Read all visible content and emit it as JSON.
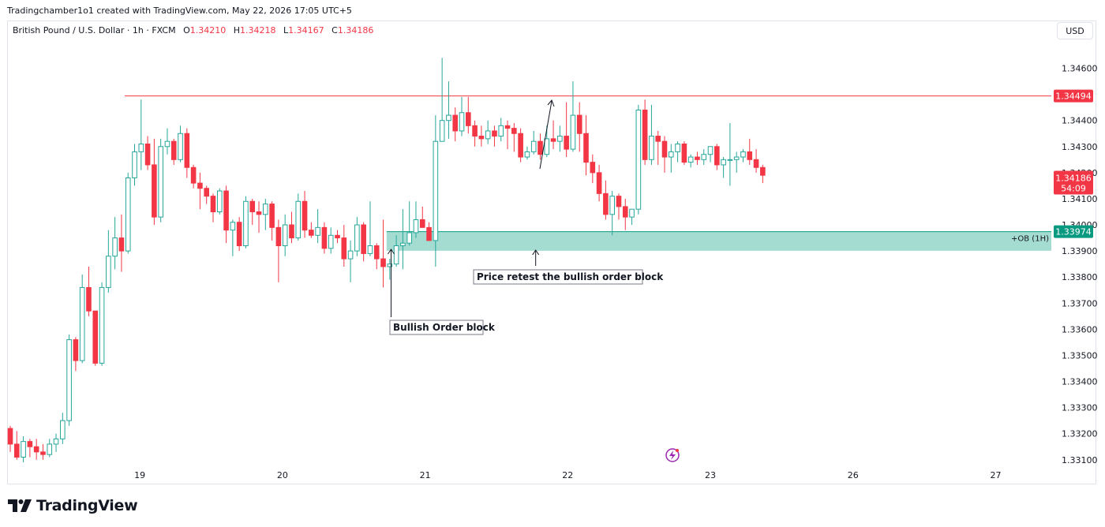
{
  "header": {
    "credit": "Tradingchamber1o1 created with TradingView.com, May 22, 2026 17:05 UTC+5"
  },
  "legend": {
    "symbol": "British Pound / U.S. Dollar · 1h · FXCM",
    "o_label": "O",
    "o_value": "1.34210",
    "h_label": "H",
    "h_value": "1.34218",
    "l_label": "L",
    "l_value": "1.34167",
    "c_label": "C",
    "c_value": "1.34186"
  },
  "currency_button": "USD",
  "brand": {
    "name": "TradingView",
    "icon": "tradingview-logo-icon"
  },
  "colors": {
    "up": "#26a69a",
    "down": "#f23645",
    "ob_zone": "#a5dcd2",
    "ob_line": "#089981",
    "resistance": "#f23645",
    "grid": "#f0f3fa"
  },
  "chart_data": {
    "type": "candlestick",
    "title": "British Pound / U.S. Dollar",
    "interval": "1h",
    "ylim": [
      1.3306,
      1.3478
    ],
    "y_ticks": [
      "1.34600",
      "1.34400",
      "1.34300",
      "1.34200",
      "1.34100",
      "1.34000",
      "1.33900",
      "1.33800",
      "1.33700",
      "1.33600",
      "1.33500",
      "1.33400",
      "1.33300",
      "1.33200",
      "1.33100"
    ],
    "x_ticks": [
      {
        "label": "19",
        "index": 19.8
      },
      {
        "label": "20",
        "index": 41.6
      },
      {
        "label": "21",
        "index": 63.4
      },
      {
        "label": "22",
        "index": 85.2
      },
      {
        "label": "23",
        "index": 107.0
      },
      {
        "label": "26",
        "index": 128.8
      },
      {
        "label": "27",
        "index": 150.6
      }
    ],
    "candles": [
      [
        1.3322,
        1.3323,
        1.3313,
        1.3316
      ],
      [
        1.3316,
        1.3321,
        1.331,
        1.3311
      ],
      [
        1.3311,
        1.3319,
        1.3309,
        1.3317
      ],
      [
        1.3317,
        1.3318,
        1.3311,
        1.3315
      ],
      [
        1.3315,
        1.3318,
        1.331,
        1.3313
      ],
      [
        1.3313,
        1.3316,
        1.331,
        1.3312
      ],
      [
        1.3312,
        1.3318,
        1.3311,
        1.3316
      ],
      [
        1.3316,
        1.332,
        1.3313,
        1.3318
      ],
      [
        1.3318,
        1.3328,
        1.3316,
        1.3325
      ],
      [
        1.3325,
        1.3358,
        1.3323,
        1.3356
      ],
      [
        1.3356,
        1.3357,
        1.3344,
        1.3348
      ],
      [
        1.3348,
        1.3381,
        1.3347,
        1.3376
      ],
      [
        1.3376,
        1.3384,
        1.3365,
        1.3367
      ],
      [
        1.3367,
        1.3367,
        1.3346,
        1.3347
      ],
      [
        1.3347,
        1.3378,
        1.3346,
        1.3376
      ],
      [
        1.3376,
        1.3398,
        1.3374,
        1.3388
      ],
      [
        1.3388,
        1.3403,
        1.3383,
        1.3395
      ],
      [
        1.3395,
        1.3404,
        1.3382,
        1.339
      ],
      [
        1.339,
        1.342,
        1.3389,
        1.3418
      ],
      [
        1.3418,
        1.3431,
        1.3415,
        1.3428
      ],
      [
        1.3428,
        1.3448,
        1.3421,
        1.3431
      ],
      [
        1.3431,
        1.3434,
        1.3421,
        1.3423
      ],
      [
        1.3423,
        1.3433,
        1.34,
        1.3403
      ],
      [
        1.3403,
        1.3433,
        1.3401,
        1.343
      ],
      [
        1.343,
        1.3437,
        1.3427,
        1.3432
      ],
      [
        1.3432,
        1.3433,
        1.3423,
        1.3425
      ],
      [
        1.3425,
        1.3438,
        1.3424,
        1.3435
      ],
      [
        1.3435,
        1.3437,
        1.3418,
        1.3422
      ],
      [
        1.3422,
        1.3423,
        1.3414,
        1.3416
      ],
      [
        1.3416,
        1.342,
        1.3406,
        1.3414
      ],
      [
        1.3414,
        1.3415,
        1.3408,
        1.3411
      ],
      [
        1.3411,
        1.3412,
        1.3401,
        1.3405
      ],
      [
        1.3405,
        1.3414,
        1.3404,
        1.3413
      ],
      [
        1.3413,
        1.3415,
        1.3393,
        1.3398
      ],
      [
        1.3398,
        1.3402,
        1.3388,
        1.3401
      ],
      [
        1.3401,
        1.3403,
        1.339,
        1.3392
      ],
      [
        1.3392,
        1.3411,
        1.3391,
        1.3409
      ],
      [
        1.3409,
        1.341,
        1.34,
        1.3405
      ],
      [
        1.3405,
        1.3409,
        1.3397,
        1.3404
      ],
      [
        1.3404,
        1.341,
        1.3398,
        1.3408
      ],
      [
        1.3408,
        1.3409,
        1.3394,
        1.3399
      ],
      [
        1.3399,
        1.3402,
        1.3378,
        1.3392
      ],
      [
        1.3392,
        1.3404,
        1.3388,
        1.34
      ],
      [
        1.34,
        1.3405,
        1.3393,
        1.3395
      ],
      [
        1.3395,
        1.3412,
        1.3394,
        1.3409
      ],
      [
        1.3409,
        1.3413,
        1.3395,
        1.3398
      ],
      [
        1.3398,
        1.3401,
        1.3395,
        1.3396
      ],
      [
        1.3396,
        1.3406,
        1.3393,
        1.3399
      ],
      [
        1.3399,
        1.3401,
        1.3389,
        1.3391
      ],
      [
        1.3391,
        1.3399,
        1.3389,
        1.3396
      ],
      [
        1.3396,
        1.3398,
        1.3393,
        1.3395
      ],
      [
        1.3395,
        1.34,
        1.3384,
        1.3387
      ],
      [
        1.3387,
        1.3394,
        1.3378,
        1.339
      ],
      [
        1.339,
        1.3403,
        1.3388,
        1.34
      ],
      [
        1.34,
        1.3401,
        1.3386,
        1.3389
      ],
      [
        1.3389,
        1.3409,
        1.3388,
        1.3392
      ],
      [
        1.3392,
        1.3393,
        1.3383,
        1.3387
      ],
      [
        1.3387,
        1.3402,
        1.3376,
        1.3384
      ],
      [
        1.3384,
        1.3387,
        1.3379,
        1.3385
      ],
      [
        1.3385,
        1.3396,
        1.3384,
        1.3392
      ],
      [
        1.3392,
        1.3406,
        1.3383,
        1.3393
      ],
      [
        1.3393,
        1.3409,
        1.3392,
        1.3397
      ],
      [
        1.3397,
        1.3409,
        1.3395,
        1.3402
      ],
      [
        1.3402,
        1.3407,
        1.34,
        1.3399
      ],
      [
        1.3399,
        1.3401,
        1.3394,
        1.3394
      ],
      [
        1.3394,
        1.3442,
        1.3384,
        1.3432
      ],
      [
        1.3432,
        1.3464,
        1.3432,
        1.344
      ],
      [
        1.344,
        1.3455,
        1.3433,
        1.3442
      ],
      [
        1.3442,
        1.3445,
        1.3432,
        1.3436
      ],
      [
        1.3436,
        1.3449,
        1.3434,
        1.3443
      ],
      [
        1.3443,
        1.3449,
        1.3435,
        1.3438
      ],
      [
        1.3438,
        1.344,
        1.343,
        1.3434
      ],
      [
        1.3434,
        1.3438,
        1.343,
        1.3433
      ],
      [
        1.3433,
        1.344,
        1.3431,
        1.3436
      ],
      [
        1.3436,
        1.3438,
        1.343,
        1.3434
      ],
      [
        1.3434,
        1.3441,
        1.3432,
        1.3438
      ],
      [
        1.3438,
        1.344,
        1.3429,
        1.3437
      ],
      [
        1.3437,
        1.3439,
        1.3428,
        1.3435
      ],
      [
        1.3435,
        1.3437,
        1.3424,
        1.3426
      ],
      [
        1.3426,
        1.343,
        1.3425,
        1.3428
      ],
      [
        1.3428,
        1.3436,
        1.3427,
        1.3432
      ],
      [
        1.3432,
        1.3435,
        1.3425,
        1.3427
      ],
      [
        1.3427,
        1.3438,
        1.3426,
        1.3433
      ],
      [
        1.3433,
        1.344,
        1.3429,
        1.3432
      ],
      [
        1.3432,
        1.3438,
        1.3428,
        1.3434
      ],
      [
        1.3434,
        1.3447,
        1.3426,
        1.3429
      ],
      [
        1.3429,
        1.3455,
        1.3428,
        1.3442
      ],
      [
        1.3442,
        1.3447,
        1.3428,
        1.3435
      ],
      [
        1.3435,
        1.3442,
        1.3419,
        1.3424
      ],
      [
        1.3424,
        1.3427,
        1.3416,
        1.342
      ],
      [
        1.342,
        1.3423,
        1.3409,
        1.3412
      ],
      [
        1.3412,
        1.3417,
        1.3402,
        1.3404
      ],
      [
        1.3404,
        1.3413,
        1.3396,
        1.3411
      ],
      [
        1.3411,
        1.3412,
        1.3402,
        1.3407
      ],
      [
        1.3407,
        1.341,
        1.3398,
        1.3403
      ],
      [
        1.3403,
        1.3406,
        1.34,
        1.3406
      ],
      [
        1.3406,
        1.3446,
        1.3404,
        1.3444
      ],
      [
        1.3444,
        1.3448,
        1.3423,
        1.3425
      ],
      [
        1.3425,
        1.3446,
        1.3423,
        1.3434
      ],
      [
        1.3434,
        1.3436,
        1.3423,
        1.3432
      ],
      [
        1.3432,
        1.3434,
        1.342,
        1.3426
      ],
      [
        1.3426,
        1.3431,
        1.342,
        1.3428
      ],
      [
        1.3428,
        1.3432,
        1.3424,
        1.3431
      ],
      [
        1.3431,
        1.3432,
        1.3423,
        1.3424
      ],
      [
        1.3424,
        1.3427,
        1.3422,
        1.3426
      ],
      [
        1.3426,
        1.3428,
        1.3423,
        1.3425
      ],
      [
        1.3425,
        1.3429,
        1.3423,
        1.3427
      ],
      [
        1.3427,
        1.343,
        1.3424,
        1.343
      ],
      [
        1.343,
        1.3431,
        1.3421,
        1.3423
      ],
      [
        1.3423,
        1.3426,
        1.3418,
        1.3425
      ],
      [
        1.3425,
        1.3439,
        1.3415,
        1.3425
      ],
      [
        1.3425,
        1.3428,
        1.342,
        1.3426
      ],
      [
        1.3426,
        1.3429,
        1.3424,
        1.3428
      ],
      [
        1.3428,
        1.3433,
        1.3423,
        1.3425
      ],
      [
        1.3425,
        1.3429,
        1.342,
        1.3422
      ],
      [
        1.3422,
        1.3423,
        1.3416,
        1.3419
      ]
    ],
    "resistance": {
      "price": 1.34494,
      "label": "1.34494",
      "start_index": 17.5
    },
    "order_block": {
      "top": 1.33974,
      "bottom": 1.33925,
      "label": "+OB (1H)",
      "price_label": "1.33974",
      "start_index": 58
    },
    "last_price": {
      "label": "1.34186",
      "countdown": "54:09",
      "price": 1.34186
    },
    "annotations": [
      {
        "text": "Bullish Order block",
        "arrow_index": 58.2
      },
      {
        "text": "Price retest the bullish order block",
        "arrow_index": 80.3
      }
    ]
  }
}
